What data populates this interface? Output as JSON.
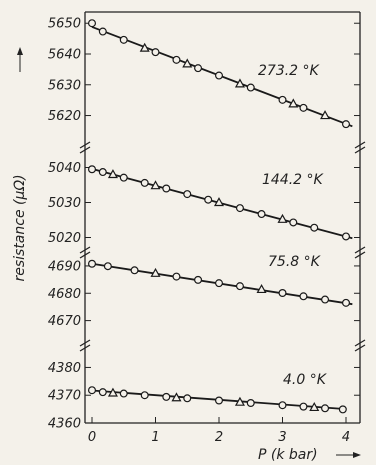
{
  "chart_data": {
    "type": "line",
    "x_label": "P (k bar)",
    "y_label": "resistance (μΩ)",
    "x_ticks": [
      "0",
      "1",
      "2",
      "3",
      "4"
    ],
    "xlim": [
      0,
      4.2
    ],
    "panels": [
      {
        "temperature_label": "273.2 °K",
        "y_ticks": [
          "5650",
          "5640",
          "5630",
          "5620"
        ],
        "ylim": [
          5614,
          5653
        ],
        "line": {
          "x": [
            0,
            4.1
          ],
          "y": [
            5648.8,
            5616.5
          ]
        },
        "circles": {
          "x": [
            0.0,
            0.17,
            0.5,
            1.0,
            1.33,
            1.67,
            2.0,
            2.5,
            3.0,
            3.33,
            4.0
          ],
          "y": [
            5650.0,
            5647.3,
            5644.6,
            5640.6,
            5638.1,
            5635.4,
            5633.0,
            5629.1,
            5625.1,
            5622.5,
            5617.2
          ]
        },
        "triangles": {
          "x": [
            0.83,
            1.5,
            2.33,
            3.17,
            3.67
          ],
          "y": [
            5641.9,
            5636.8,
            5630.3,
            5623.8,
            5620.0
          ]
        }
      },
      {
        "temperature_label": "144.2 °K",
        "y_ticks": [
          "5040",
          "5030",
          "5020"
        ],
        "ylim": [
          5017,
          5045
        ],
        "line": {
          "x": [
            0,
            4.1
          ],
          "y": [
            5039.6,
            5019.8
          ]
        },
        "circles": {
          "x": [
            0.0,
            0.17,
            0.5,
            0.83,
            1.17,
            1.5,
            1.83,
            2.33,
            2.67,
            3.17,
            3.5,
            4.0
          ],
          "y": [
            5039.5,
            5038.7,
            5037.1,
            5035.6,
            5034.0,
            5032.4,
            5030.8,
            5028.4,
            5026.7,
            5024.3,
            5022.8,
            5020.3
          ]
        },
        "triangles": {
          "x": [
            0.33,
            1.0,
            2.0,
            3.0
          ],
          "y": [
            5038.0,
            5034.8,
            5030.0,
            5025.2
          ]
        }
      },
      {
        "temperature_label": "75.8 °K",
        "y_ticks": [
          "4690",
          "4680",
          "4670"
        ],
        "ylim": [
          4664,
          4694
        ],
        "line": {
          "x": [
            0,
            4.1
          ],
          "y": [
            4690.8,
            4676.0
          ]
        },
        "circles": {
          "x": [
            0.0,
            0.25,
            0.67,
            1.33,
            1.67,
            2.0,
            2.33,
            3.0,
            3.33,
            3.67,
            4.0
          ],
          "y": [
            4690.8,
            4689.9,
            4688.4,
            4686.1,
            4684.9,
            4683.7,
            4682.6,
            4680.1,
            4678.9,
            4677.7,
            4676.5
          ]
        },
        "triangles": {
          "x": [
            1.0,
            2.67
          ],
          "y": [
            4687.3,
            4681.4
          ]
        }
      },
      {
        "temperature_label": "4.0 °K",
        "y_ticks": [
          "4380",
          "4370",
          "4360"
        ],
        "ylim": [
          4360,
          4387
        ],
        "line": {
          "x": [
            0,
            4.0
          ],
          "y": [
            4371.7,
            4365.0
          ]
        },
        "circles": {
          "x": [
            0.0,
            0.17,
            0.5,
            0.83,
            1.17,
            1.5,
            2.0,
            2.5,
            3.0,
            3.33,
            3.67,
            3.95
          ],
          "y": [
            4371.8,
            4371.1,
            4370.6,
            4370.0,
            4369.4,
            4368.9,
            4368.1,
            4367.2,
            4366.4,
            4365.9,
            4365.3,
            4364.9
          ]
        },
        "triangles": {
          "x": [
            0.33,
            1.33,
            2.33,
            3.5
          ],
          "y": [
            4370.8,
            4369.1,
            4367.5,
            4365.6
          ]
        }
      }
    ]
  }
}
